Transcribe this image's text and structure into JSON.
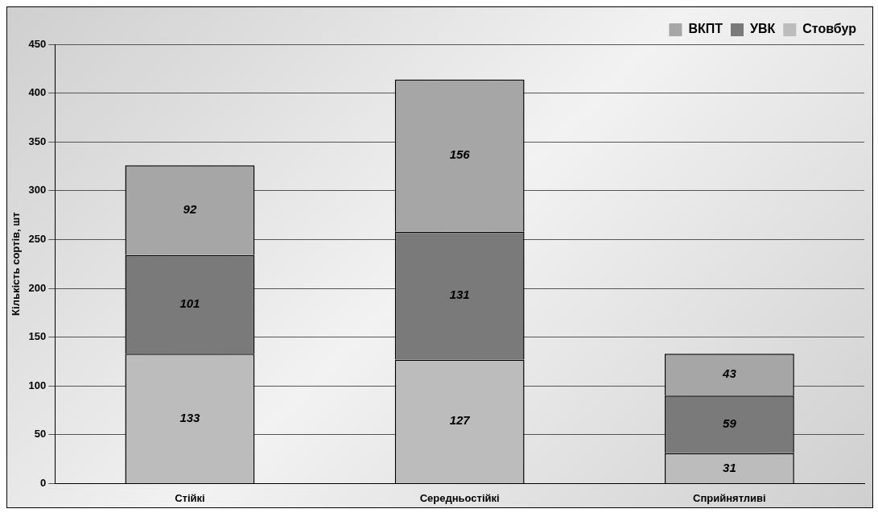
{
  "chart_data": {
    "type": "bar",
    "stacked": true,
    "ylabel": "Кількість сортів, шт",
    "categories": [
      "Стійкі",
      "Середньостійкі",
      "Сприйнятливі"
    ],
    "series": [
      {
        "name": "Стовбур",
        "color": "#bcbcbc",
        "values": [
          133,
          127,
          31
        ]
      },
      {
        "name": "УВК",
        "color": "#7a7a7a",
        "values": [
          101,
          131,
          59
        ]
      },
      {
        "name": "ВКПТ",
        "color": "#a6a6a6",
        "values": [
          92,
          156,
          43
        ]
      }
    ],
    "ylim": [
      0,
      450
    ],
    "yticks": [
      0,
      50,
      100,
      150,
      200,
      250,
      300,
      350,
      400,
      450
    ],
    "grid": "y",
    "legend": "top right",
    "data_labels": true
  }
}
